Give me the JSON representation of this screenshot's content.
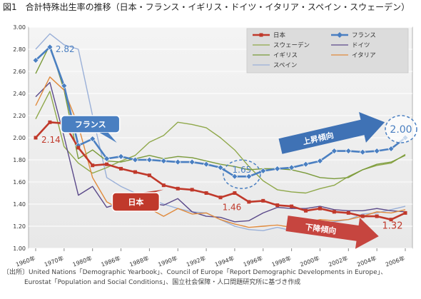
{
  "title": "図1　合計特殊出生率の推移（日本・フランス・イギリス・ドイツ・イタリア・スペイン・スウェーデン）",
  "source_lines": [
    "〔出所〕United Nations「Demographic Yearbook」、Council of Europe「Report Demographic Developments in Europe」、",
    "Eurostat「Population and Social Conditions」、国立社会保障・人口問題研究所に基づき作成"
  ],
  "colors": {
    "japan": "#c0392b",
    "france": "#4a7fc1",
    "sweden": "#8fa84a",
    "germany": "#5b4a8a",
    "uk": "#7a9a3a",
    "italy": "#e08a3c",
    "spain": "#9ab0d8",
    "plot_bg": "#e8e8e8",
    "legend_bg": "#dcdcdc",
    "arrow_up": "#3f72b5",
    "arrow_down": "#c6453f"
  },
  "annotations": {
    "france_label": "フランス",
    "japan_label": "日本",
    "up_trend": "上昇傾向",
    "down_trend": "下降傾向",
    "jp_1960": "2.14",
    "fr_1965": "2.82",
    "fr_1994": "1.65",
    "fr_2006": "2.00",
    "jp_1995": "1.46",
    "jp_2006": "1.32"
  },
  "chart_data": {
    "type": "line",
    "title": "",
    "xlabel": "",
    "ylabel": "",
    "ylim": [
      1.0,
      3.0
    ],
    "yticks": [
      "1.00",
      "1.20",
      "1.40",
      "1.60",
      "1.80",
      "2.00",
      "2.20",
      "2.40",
      "2.60",
      "2.80",
      "3.00"
    ],
    "xticks": [
      "1960年",
      "1970年",
      "1980年",
      "1986年",
      "1988年",
      "1990年",
      "1992年",
      "1994年",
      "1996年",
      "1998年",
      "2000年",
      "2002年",
      "2004年",
      "2006年"
    ],
    "legend_position": "top-right",
    "x": [
      "1960",
      "1965",
      "1970",
      "1975",
      "1980",
      "1985",
      "1986",
      "1987",
      "1988",
      "1989",
      "1990",
      "1991",
      "1992",
      "1993",
      "1994",
      "1995",
      "1996",
      "1997",
      "1998",
      "1999",
      "2000",
      "2001",
      "2002",
      "2003",
      "2004",
      "2005",
      "2006"
    ],
    "series": [
      {
        "name": "日本",
        "key": "japan",
        "marker": "square",
        "values": [
          2.0,
          2.14,
          2.13,
          1.91,
          1.75,
          1.76,
          1.72,
          1.69,
          1.66,
          1.57,
          1.54,
          1.53,
          1.5,
          1.46,
          1.5,
          1.42,
          1.43,
          1.39,
          1.38,
          1.34,
          1.36,
          1.33,
          1.32,
          1.29,
          1.29,
          1.26,
          1.32
        ]
      },
      {
        "name": "フランス",
        "key": "france",
        "marker": "diamond",
        "values": [
          2.7,
          2.82,
          2.47,
          1.93,
          1.99,
          1.81,
          1.83,
          1.8,
          1.8,
          1.79,
          1.78,
          1.78,
          1.76,
          1.73,
          1.65,
          1.65,
          1.7,
          1.72,
          1.73,
          1.76,
          1.79,
          1.88,
          1.88,
          1.87,
          1.88,
          1.9,
          2.0
        ]
      },
      {
        "name": "スウェーデン",
        "key": "sweden",
        "marker": "none",
        "values": [
          2.17,
          2.42,
          1.92,
          1.77,
          1.68,
          1.73,
          1.79,
          1.84,
          1.96,
          2.02,
          2.14,
          2.12,
          2.09,
          2.0,
          1.89,
          1.74,
          1.61,
          1.53,
          1.51,
          1.5,
          1.54,
          1.57,
          1.65,
          1.71,
          1.75,
          1.77,
          1.85
        ]
      },
      {
        "name": "ドイツ",
        "key": "germany",
        "marker": "none",
        "values": [
          2.37,
          2.5,
          2.01,
          1.48,
          1.56,
          1.37,
          1.41,
          1.43,
          1.41,
          1.39,
          1.45,
          1.33,
          1.29,
          1.28,
          1.24,
          1.25,
          1.32,
          1.37,
          1.36,
          1.36,
          1.38,
          1.35,
          1.34,
          1.34,
          1.36,
          1.34,
          1.33
        ]
      },
      {
        "name": "イギリス",
        "key": "uk",
        "marker": "none",
        "values": [
          2.58,
          2.84,
          2.43,
          1.81,
          1.89,
          1.79,
          1.78,
          1.81,
          1.84,
          1.81,
          1.83,
          1.82,
          1.79,
          1.76,
          1.74,
          1.71,
          1.72,
          1.72,
          1.71,
          1.68,
          1.64,
          1.63,
          1.64,
          1.71,
          1.76,
          1.78,
          1.84
        ]
      },
      {
        "name": "イタリア",
        "key": "italy",
        "marker": "none",
        "values": [
          2.29,
          2.55,
          2.43,
          2.11,
          1.64,
          1.42,
          1.35,
          1.35,
          1.36,
          1.29,
          1.36,
          1.31,
          1.32,
          1.26,
          1.22,
          1.19,
          1.2,
          1.21,
          1.19,
          1.23,
          1.26,
          1.25,
          1.26,
          1.29,
          1.33,
          1.32,
          1.35
        ]
      },
      {
        "name": "スペイン",
        "key": "spain",
        "marker": "none",
        "values": [
          2.8,
          2.94,
          2.84,
          2.8,
          2.2,
          1.64,
          1.56,
          1.5,
          1.45,
          1.4,
          1.36,
          1.33,
          1.32,
          1.26,
          1.2,
          1.17,
          1.16,
          1.19,
          1.16,
          1.2,
          1.23,
          1.24,
          1.26,
          1.31,
          1.32,
          1.35,
          1.38
        ]
      }
    ]
  }
}
